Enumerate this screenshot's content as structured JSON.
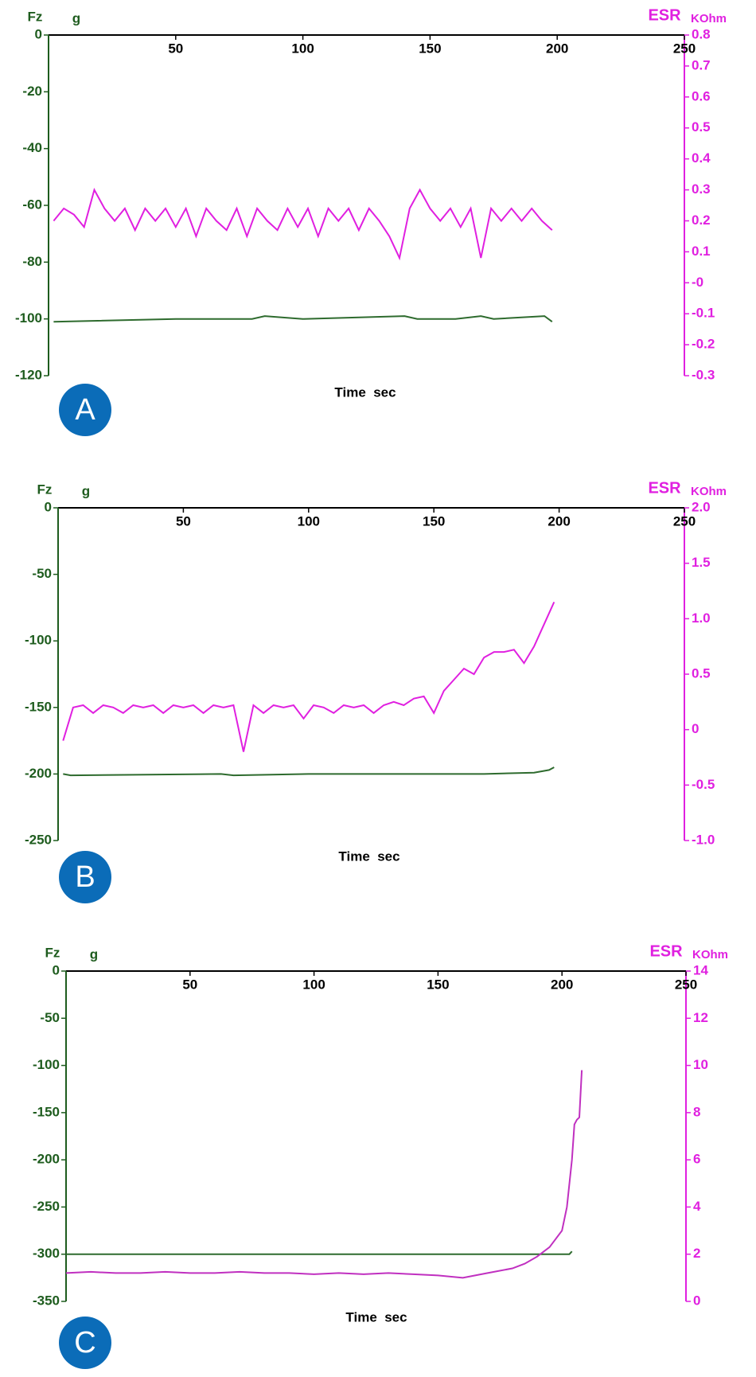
{
  "chart_data": [
    {
      "type": "line",
      "panel": "A",
      "x_label": "Time  sec",
      "y_label": "Fz",
      "y_unit": "g",
      "y2_label": "ESR",
      "y2_unit": "KOhm",
      "xlim": [
        0,
        250
      ],
      "xticks": [
        50,
        100,
        150,
        200,
        250
      ],
      "ylim": [
        -120,
        0
      ],
      "yticks": [
        0,
        -20,
        -40,
        -60,
        -80,
        -100,
        -120
      ],
      "y2lim": [
        -0.3,
        0.8
      ],
      "y2ticks": [
        0.8,
        0.7,
        0.6,
        0.5,
        0.4,
        0.3,
        0.2,
        0.1,
        {
          "value": 0,
          "label": "-0"
        },
        -0.1,
        -0.2,
        -0.3
      ],
      "y_color": "#1e5c1e",
      "y2_color": "#e020e0",
      "series": [
        {
          "axis": "y",
          "color": "#2e6b2e",
          "x": [
            2,
            50,
            80,
            85,
            100,
            140,
            145,
            160,
            170,
            175,
            195,
            198
          ],
          "values": [
            -101,
            -100,
            -100,
            -99,
            -100,
            -99,
            -100,
            -100,
            -99,
            -100,
            -99,
            -101
          ]
        },
        {
          "axis": "y2",
          "color": "#e020e0",
          "x": [
            2,
            6,
            10,
            14,
            18,
            22,
            26,
            30,
            34,
            38,
            42,
            46,
            50,
            54,
            58,
            62,
            66,
            70,
            74,
            78,
            82,
            86,
            90,
            94,
            98,
            102,
            106,
            110,
            114,
            118,
            122,
            126,
            130,
            134,
            138,
            142,
            146,
            150,
            154,
            158,
            162,
            166,
            170,
            174,
            178,
            182,
            186,
            190,
            194,
            198
          ],
          "values": [
            0.2,
            0.24,
            0.22,
            0.18,
            0.3,
            0.24,
            0.2,
            0.24,
            0.17,
            0.24,
            0.2,
            0.24,
            0.18,
            0.24,
            0.15,
            0.24,
            0.2,
            0.17,
            0.24,
            0.15,
            0.24,
            0.2,
            0.17,
            0.24,
            0.18,
            0.24,
            0.15,
            0.24,
            0.2,
            0.24,
            0.17,
            0.24,
            0.2,
            0.15,
            0.08,
            0.24,
            0.3,
            0.24,
            0.2,
            0.24,
            0.18,
            0.24,
            0.08,
            0.24,
            0.2,
            0.24,
            0.2,
            0.24,
            0.2,
            0.17
          ]
        }
      ]
    },
    {
      "type": "line",
      "panel": "B",
      "x_label": "Time  sec",
      "y_label": "Fz",
      "y_unit": "g",
      "y2_label": "ESR",
      "y2_unit": "KOhm",
      "xlim": [
        0,
        250
      ],
      "xticks": [
        50,
        100,
        150,
        200,
        250
      ],
      "ylim": [
        -250,
        0
      ],
      "yticks": [
        0,
        -50,
        -100,
        -150,
        -200,
        -250
      ],
      "y2lim": [
        -1,
        2
      ],
      "y2ticks": [
        {
          "value": 2,
          "label": "2.0"
        },
        1.5,
        {
          "value": 1,
          "label": "1.0"
        },
        0.5,
        0,
        -0.5,
        {
          "value": -1,
          "label": "-1.0"
        }
      ],
      "y_color": "#1e5c1e",
      "y2_color": "#e020e0",
      "series": [
        {
          "axis": "y",
          "color": "#2e6b2e",
          "x": [
            2,
            5,
            65,
            70,
            100,
            170,
            190,
            196,
            198
          ],
          "values": [
            -200,
            -201,
            -200,
            -201,
            -200,
            -200,
            -199,
            -197,
            -195
          ]
        },
        {
          "axis": "y2",
          "color": "#e020e0",
          "x": [
            2,
            6,
            10,
            14,
            18,
            22,
            26,
            30,
            34,
            38,
            42,
            46,
            50,
            54,
            58,
            62,
            66,
            70,
            74,
            78,
            82,
            86,
            90,
            94,
            98,
            102,
            106,
            110,
            114,
            118,
            122,
            126,
            130,
            134,
            138,
            142,
            146,
            150,
            154,
            158,
            162,
            166,
            170,
            174,
            178,
            182,
            186,
            190,
            194,
            198
          ],
          "values": [
            -0.1,
            0.2,
            0.22,
            0.15,
            0.22,
            0.2,
            0.15,
            0.22,
            0.2,
            0.22,
            0.15,
            0.22,
            0.2,
            0.22,
            0.15,
            0.22,
            0.2,
            0.22,
            -0.2,
            0.22,
            0.15,
            0.22,
            0.2,
            0.22,
            0.1,
            0.22,
            0.2,
            0.15,
            0.22,
            0.2,
            0.22,
            0.15,
            0.22,
            0.25,
            0.22,
            0.28,
            0.3,
            0.15,
            0.35,
            0.45,
            0.55,
            0.5,
            0.65,
            0.7,
            0.7,
            0.72,
            0.6,
            0.75,
            0.95,
            1.15
          ]
        }
      ]
    },
    {
      "type": "line",
      "panel": "C",
      "x_label": "Time  sec",
      "y_label": "Fz",
      "y_unit": "g",
      "y2_label": "ESR",
      "y2_unit": "KOhm",
      "xlim": [
        0,
        250
      ],
      "xticks": [
        50,
        100,
        150,
        200,
        250
      ],
      "ylim": [
        -350,
        0
      ],
      "yticks": [
        0,
        -50,
        -100,
        -150,
        -200,
        -250,
        -300,
        -350
      ],
      "y2lim": [
        0,
        14
      ],
      "y2ticks": [
        14,
        12,
        10,
        8,
        6,
        4,
        2,
        0
      ],
      "y_color": "#1e5c1e",
      "y2_color": "#e020e0",
      "series": [
        {
          "axis": "y",
          "color": "#2e6b2e",
          "x": [
            0,
            50,
            100,
            150,
            200,
            203,
            204
          ],
          "values": [
            -300,
            -300,
            -300,
            -300,
            -300,
            -300,
            -297
          ]
        },
        {
          "axis": "y2",
          "color": "#c030c0",
          "x": [
            0,
            10,
            20,
            30,
            40,
            50,
            60,
            70,
            80,
            90,
            100,
            110,
            120,
            130,
            140,
            150,
            160,
            170,
            180,
            185,
            190,
            195,
            200,
            202,
            204,
            205,
            206,
            207,
            208
          ],
          "values": [
            1.2,
            1.25,
            1.2,
            1.2,
            1.25,
            1.2,
            1.2,
            1.25,
            1.2,
            1.2,
            1.15,
            1.2,
            1.15,
            1.2,
            1.15,
            1.1,
            1.0,
            1.2,
            1.4,
            1.6,
            1.9,
            2.3,
            3.0,
            4.0,
            6.0,
            7.5,
            7.7,
            7.8,
            9.8
          ]
        }
      ]
    }
  ]
}
